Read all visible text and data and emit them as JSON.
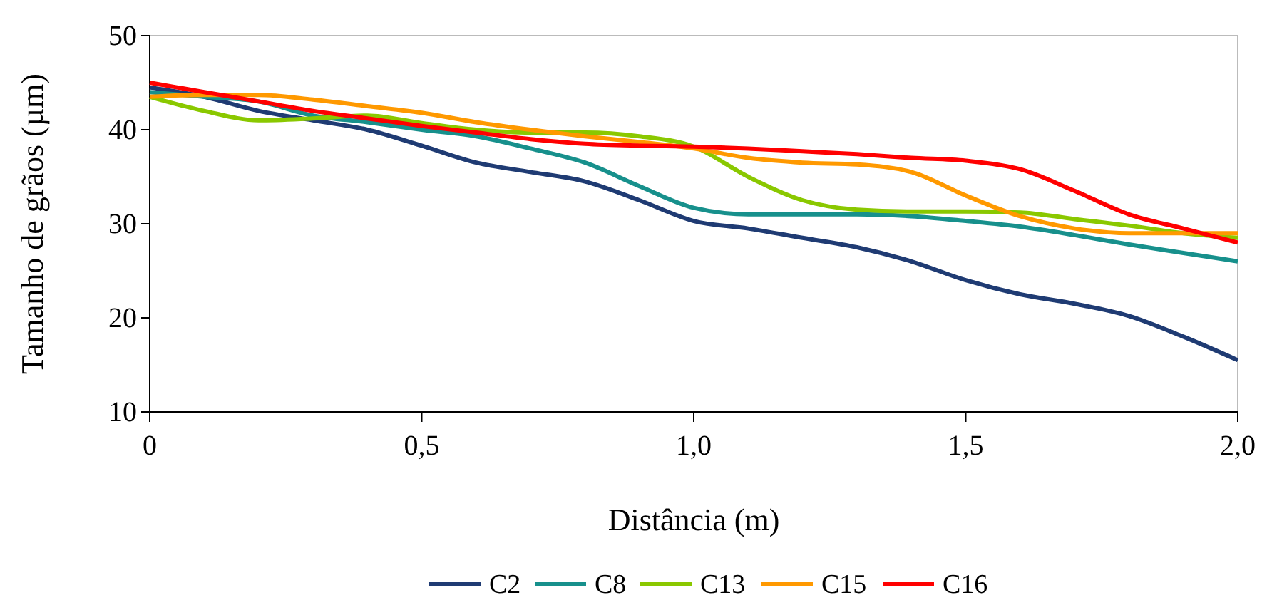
{
  "chart_data": {
    "type": "line",
    "xlabel": "Distância (m)",
    "ylabel": "Tamanho de grãos  (µm)",
    "x": [
      0,
      0.1,
      0.2,
      0.3,
      0.4,
      0.5,
      0.6,
      0.7,
      0.8,
      0.9,
      1.0,
      1.1,
      1.2,
      1.3,
      1.4,
      1.5,
      1.6,
      1.7,
      1.8,
      1.9,
      2.0
    ],
    "xlim": [
      0,
      2
    ],
    "xticks": [
      0,
      {
        "value": 0.5,
        "label": "0,5"
      },
      {
        "value": 1,
        "label": "1,0"
      },
      {
        "value": 1.5,
        "label": "1,5"
      },
      {
        "value": 2,
        "label": "2,0"
      }
    ],
    "ylim": [
      10,
      50
    ],
    "yticks": [
      10,
      20,
      30,
      40,
      50
    ],
    "grid": false,
    "legend": "bottom",
    "line_style": "solid",
    "marker": "none",
    "series": [
      {
        "name": "C2",
        "color": "#1f3b73",
        "values": [
          44.5,
          43.5,
          42,
          41,
          40,
          38.3,
          36.5,
          35.5,
          34.5,
          32.5,
          30.3,
          29.5,
          28.5,
          27.5,
          26,
          24,
          22.5,
          21.5,
          20.2,
          18,
          15.5
        ]
      },
      {
        "name": "C8",
        "color": "#17908c",
        "values": [
          44,
          43.5,
          43,
          41.5,
          40.8,
          40,
          39.3,
          38,
          36.5,
          34,
          31.7,
          31,
          31,
          31,
          30.8,
          30.3,
          29.7,
          28.8,
          27.8,
          26.9,
          26
        ]
      },
      {
        "name": "C13",
        "color": "#8ac800",
        "values": [
          43.5,
          42,
          41,
          41.2,
          41.5,
          40.7,
          40,
          39.7,
          39.7,
          39.3,
          38.2,
          35,
          32.5,
          31.5,
          31.3,
          31.3,
          31.2,
          30.5,
          29.8,
          29,
          28.5
        ]
      },
      {
        "name": "C15",
        "color": "#ff9900",
        "values": [
          43.5,
          43.7,
          43.7,
          43.2,
          42.5,
          41.8,
          40.8,
          40,
          39.3,
          38.7,
          38,
          37,
          36.5,
          36.3,
          35.5,
          33,
          30.8,
          29.5,
          29,
          29,
          29
        ]
      },
      {
        "name": "C16",
        "color": "#ff0000",
        "values": [
          45,
          44,
          43,
          42,
          41.2,
          40.4,
          39.7,
          39,
          38.5,
          38.3,
          38.2,
          38,
          37.7,
          37.4,
          37,
          36.7,
          35.8,
          33.5,
          31,
          29.5,
          28
        ]
      }
    ]
  }
}
